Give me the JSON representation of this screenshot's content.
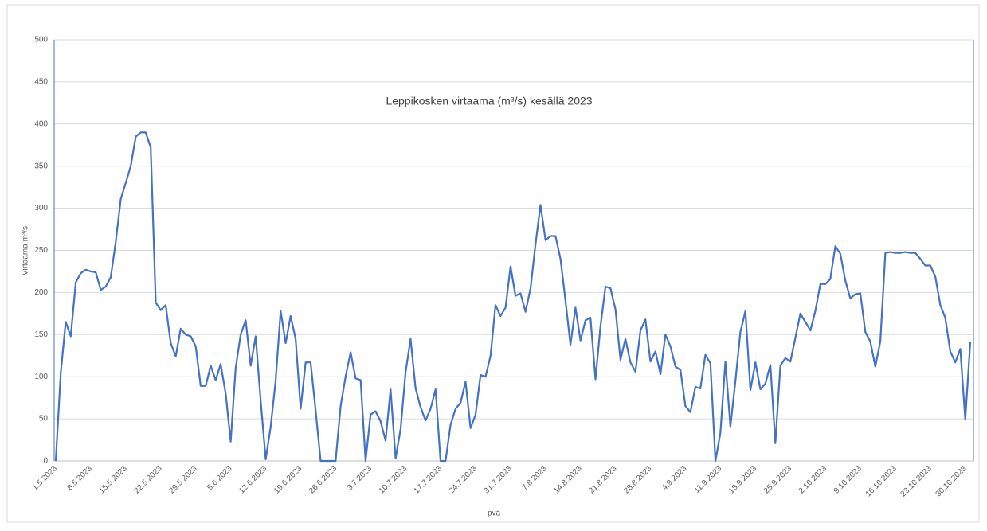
{
  "chart_data": {
    "type": "line",
    "title": "Leppikosken virtaama (m³/s) kesällä 2023",
    "xlabel": "pvä",
    "ylabel": "Virtaama m³/s",
    "color": "#4472c4",
    "grid": true,
    "ylim": [
      0,
      500
    ],
    "yticks": [
      0,
      50,
      100,
      150,
      200,
      250,
      300,
      350,
      400,
      450,
      500
    ],
    "categories": [
      "1.5.2023",
      null,
      null,
      null,
      null,
      null,
      null,
      "8.5.2023",
      null,
      null,
      null,
      null,
      null,
      null,
      "15.5.2023",
      null,
      null,
      null,
      null,
      null,
      null,
      "22.5.2023",
      null,
      null,
      null,
      null,
      null,
      null,
      "29.5.2023",
      null,
      null,
      null,
      null,
      null,
      null,
      "5.6.2023",
      null,
      null,
      null,
      null,
      null,
      null,
      "12.6.2023",
      null,
      null,
      null,
      null,
      null,
      null,
      "19.6.2023",
      null,
      null,
      null,
      null,
      null,
      null,
      "26.6.2023",
      null,
      null,
      null,
      null,
      null,
      null,
      "3.7.2023",
      null,
      null,
      null,
      null,
      null,
      null,
      "10.7.2023",
      null,
      null,
      null,
      null,
      null,
      null,
      "17.7.2023",
      null,
      null,
      null,
      null,
      null,
      null,
      "24.7.2023",
      null,
      null,
      null,
      null,
      null,
      null,
      "31.7.2023",
      null,
      null,
      null,
      null,
      null,
      null,
      "7.8.2023",
      null,
      null,
      null,
      null,
      null,
      null,
      "14.8.2023",
      null,
      null,
      null,
      null,
      null,
      null,
      "21.8.2023",
      null,
      null,
      null,
      null,
      null,
      null,
      "28.8.2023",
      null,
      null,
      null,
      null,
      null,
      null,
      "4.9.2023",
      null,
      null,
      null,
      null,
      null,
      null,
      "11.9.2023",
      null,
      null,
      null,
      null,
      null,
      null,
      "18.9.2023",
      null,
      null,
      null,
      null,
      null,
      null,
      "25.9.2023",
      null,
      null,
      null,
      null,
      null,
      null,
      "2.10.2023",
      null,
      null,
      null,
      null,
      null,
      null,
      "9.10.2023",
      null,
      null,
      null,
      null,
      null,
      null,
      "16.10.2023",
      null,
      null,
      null,
      null,
      null,
      null,
      "23.10.2023",
      null,
      null,
      null,
      null,
      null,
      null,
      "30.10.2023",
      null
    ],
    "values": [
      0,
      105,
      165,
      148,
      212,
      223,
      227,
      225,
      224,
      203,
      207,
      218,
      260,
      311,
      330,
      350,
      385,
      390,
      390,
      372,
      188,
      179,
      185,
      140,
      124,
      157,
      150,
      148,
      136,
      89,
      89,
      113,
      96,
      115,
      80,
      23,
      110,
      150,
      167,
      113,
      148,
      72,
      2,
      40,
      95,
      178,
      140,
      172,
      145,
      62,
      117,
      117,
      60,
      0,
      0,
      0,
      0,
      65,
      100,
      129,
      98,
      96,
      0,
      55,
      59,
      47,
      24,
      85,
      3,
      38,
      105,
      145,
      86,
      64,
      48,
      62,
      85,
      0,
      0,
      43,
      62,
      69,
      94,
      39,
      55,
      102,
      100,
      125,
      185,
      172,
      182,
      231,
      196,
      199,
      177,
      205,
      257,
      304,
      262,
      267,
      267,
      240,
      190,
      138,
      182,
      143,
      167,
      170,
      97,
      160,
      207,
      205,
      180,
      120,
      145,
      117,
      106,
      155,
      168,
      118,
      130,
      103,
      150,
      136,
      112,
      108,
      65,
      58,
      88,
      86,
      126,
      116,
      0,
      33,
      118,
      41,
      95,
      153,
      178,
      84,
      117,
      85,
      92,
      114,
      21,
      113,
      122,
      118,
      146,
      175,
      165,
      155,
      178,
      210,
      210,
      216,
      255,
      246,
      214,
      193,
      198,
      199,
      153,
      142,
      112,
      142,
      247,
      248,
      247,
      247,
      248,
      247,
      247,
      240,
      232,
      232,
      219,
      185,
      170,
      130,
      117,
      133,
      49,
      141
    ]
  }
}
